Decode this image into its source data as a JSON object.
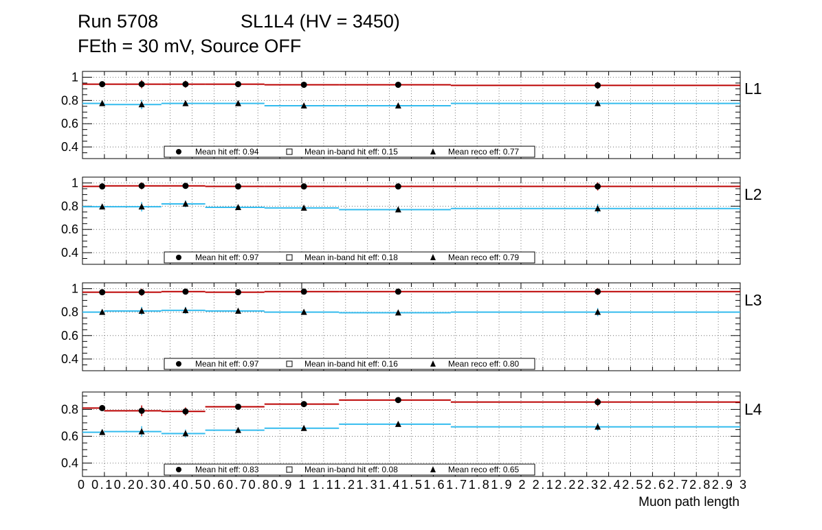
{
  "header": {
    "run": "Run 5708",
    "sl": "SL1L4 (HV = 3450)",
    "subtitle": "FEth = 30 mV, Source OFF"
  },
  "colors": {
    "hit": "#bb0000",
    "reco": "#33bbee",
    "marker": "#000000",
    "grid": "#555555"
  },
  "chart_data": {
    "type": "line",
    "xlabel": "Muon path length",
    "xlim": [
      0,
      3
    ],
    "x_tick_labels": [
      "0",
      "0.1",
      "0.2",
      "0.3",
      "0.4",
      "0.5",
      "0.6",
      "0.7",
      "0.8",
      "0.9",
      "1",
      "1.1",
      "1.2",
      "1.3",
      "1.4",
      "1.5",
      "1.6",
      "1.7",
      "1.8",
      "1.9",
      "2",
      "2.1",
      "2.2",
      "2.3",
      "2.4",
      "2.5",
      "2.6",
      "2.7",
      "2.8",
      "2.9",
      "3"
    ],
    "x_tick_text": "0   0.10.20.30.40.50.60.70.80.9   1   1.11.21.31.41.51.61.71.81.9   2   2.12.22.32.42.52.62.72.82.9   3",
    "bin_edges": [
      0,
      0.1,
      0.36,
      0.56,
      0.83,
      1.17,
      1.68,
      3.0
    ],
    "point_x": [
      0.09,
      0.27,
      0.47,
      0.71,
      1.01,
      1.44,
      2.35
    ],
    "panels": [
      {
        "label": "L1",
        "ylim": [
          0.3,
          1.05
        ],
        "y_ticks": [
          0.4,
          0.6,
          0.8,
          1
        ],
        "y_tick_labels": [
          "0.4",
          "0.6",
          "0.8",
          "1"
        ],
        "hit": [
          0.94,
          0.94,
          0.94,
          0.94,
          0.935,
          0.935,
          0.93
        ],
        "hit_err": [
          0.02,
          0.035,
          0.03,
          0.02,
          0.015,
          0.02,
          0.03
        ],
        "reco": [
          0.775,
          0.765,
          0.775,
          0.775,
          0.755,
          0.755,
          0.775
        ],
        "reco_err": [
          0.02,
          0.04,
          0.02,
          0.02,
          0.015,
          0.015,
          0.025
        ],
        "legend": {
          "hit": "Mean hit  eff: 0.94",
          "inband": "Mean in-band hit eff: 0.15",
          "reco": "Mean reco eff: 0.77"
        }
      },
      {
        "label": "L2",
        "ylim": [
          0.3,
          1.05
        ],
        "y_ticks": [
          0.4,
          0.6,
          0.8,
          1
        ],
        "y_tick_labels": [
          "0.4",
          "0.6",
          "0.8",
          "1"
        ],
        "hit": [
          0.97,
          0.975,
          0.975,
          0.97,
          0.97,
          0.97,
          0.97
        ],
        "hit_err": [
          0.015,
          0.03,
          0.025,
          0.02,
          0.01,
          0.015,
          0.035
        ],
        "reco": [
          0.795,
          0.795,
          0.82,
          0.79,
          0.785,
          0.77,
          0.78
        ],
        "reco_err": [
          0.02,
          0.04,
          0.03,
          0.02,
          0.015,
          0.015,
          0.04
        ],
        "legend": {
          "hit": "Mean hit  eff: 0.97",
          "inband": "Mean in-band hit eff: 0.18",
          "reco": "Mean reco eff: 0.79"
        }
      },
      {
        "label": "L3",
        "ylim": [
          0.3,
          1.05
        ],
        "y_ticks": [
          0.4,
          0.6,
          0.8,
          1
        ],
        "y_tick_labels": [
          "0.4",
          "0.6",
          "0.8",
          "1"
        ],
        "hit": [
          0.97,
          0.97,
          0.975,
          0.97,
          0.975,
          0.975,
          0.975
        ],
        "hit_err": [
          0.015,
          0.03,
          0.025,
          0.02,
          0.01,
          0.015,
          0.03
        ],
        "reco": [
          0.8,
          0.81,
          0.815,
          0.81,
          0.8,
          0.795,
          0.8
        ],
        "reco_err": [
          0.02,
          0.035,
          0.03,
          0.02,
          0.015,
          0.015,
          0.035
        ],
        "legend": {
          "hit": "Mean hit  eff: 0.97",
          "inband": "Mean in-band hit eff: 0.16",
          "reco": "Mean reco eff: 0.80"
        }
      },
      {
        "label": "L4",
        "ylim": [
          0.3,
          0.93
        ],
        "y_ticks": [
          0.4,
          0.6,
          0.8
        ],
        "y_tick_labels": [
          "0.4",
          "0.6",
          "0.8"
        ],
        "hit": [
          0.81,
          0.79,
          0.785,
          0.82,
          0.84,
          0.87,
          0.855
        ],
        "hit_err": [
          0.02,
          0.04,
          0.03,
          0.02,
          0.015,
          0.015,
          0.03
        ],
        "reco": [
          0.63,
          0.635,
          0.62,
          0.645,
          0.66,
          0.69,
          0.67
        ],
        "reco_err": [
          0.02,
          0.04,
          0.03,
          0.02,
          0.015,
          0.015,
          0.03
        ],
        "legend": {
          "hit": "Mean hit  eff: 0.83",
          "inband": "Mean in-band hit eff: 0.08",
          "reco": "Mean reco eff: 0.65"
        }
      }
    ]
  }
}
